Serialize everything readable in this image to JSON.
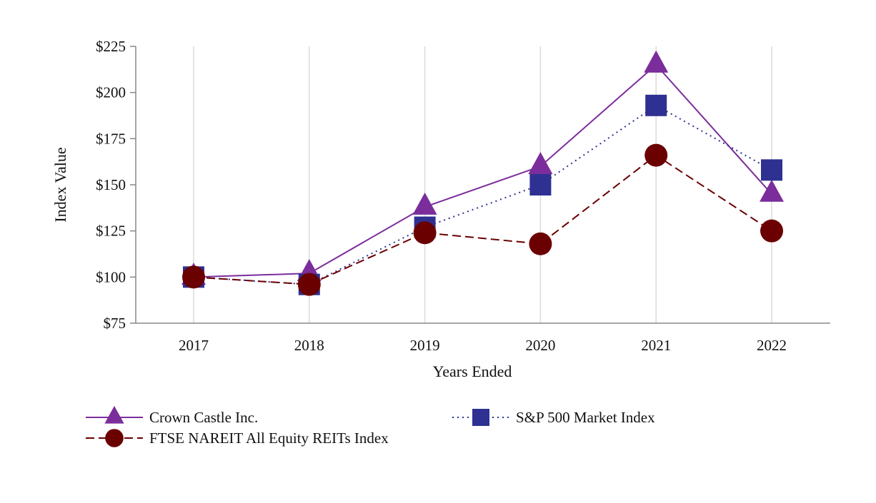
{
  "chart_data": {
    "type": "line",
    "title": "",
    "xlabel": "Years Ended",
    "ylabel": "Index Value",
    "ylim": [
      75,
      225
    ],
    "yticks": [
      75,
      100,
      125,
      150,
      175,
      200,
      225
    ],
    "ytick_labels": [
      "$75",
      "$100",
      "$125",
      "$150",
      "$175",
      "$200",
      "$225"
    ],
    "categories": [
      "2017",
      "2018",
      "2019",
      "2020",
      "2021",
      "2022"
    ],
    "grid": "vertical",
    "legend_position": "bottom",
    "series": [
      {
        "name": "Crown Castle Inc.",
        "values": [
          100,
          102,
          138,
          160,
          215,
          145
        ],
        "color": "#7B2D9B",
        "line_style": "solid",
        "marker": "triangle"
      },
      {
        "name": "S&P 500 Market Index",
        "values": [
          100,
          96,
          127,
          150,
          193,
          158
        ],
        "color": "#2E3192",
        "line_style": "dotted",
        "marker": "square"
      },
      {
        "name": "FTSE NAREIT All Equity REITs Index",
        "values": [
          100,
          96,
          124,
          118,
          166,
          125
        ],
        "color": "#6B0000",
        "line_style": "dashed",
        "marker": "circle"
      }
    ]
  }
}
